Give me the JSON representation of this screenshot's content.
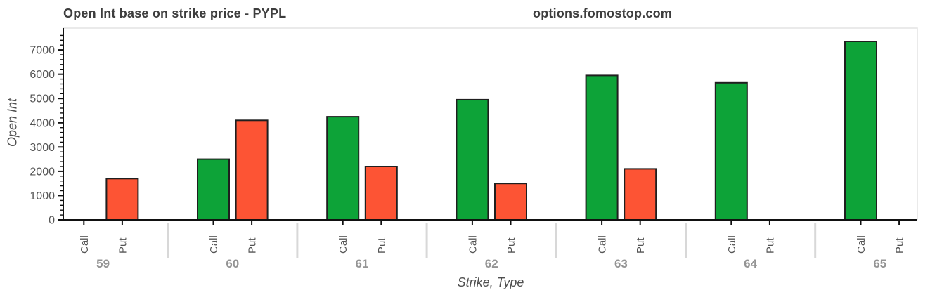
{
  "header": {
    "title": "Open Int base on strike price - PYPL",
    "watermark": "options.fomostop.com"
  },
  "chart_data": {
    "type": "bar",
    "title": "Open Int base on strike price - PYPL",
    "xlabel": "Strike, Type",
    "ylabel": "Open Int",
    "categories": [
      "59",
      "60",
      "61",
      "62",
      "63",
      "64",
      "65"
    ],
    "subcategories": [
      "Call",
      "Put"
    ],
    "series": [
      {
        "name": "Call",
        "color": "#0da338",
        "values": [
          0,
          2500,
          4250,
          4950,
          5950,
          5650,
          7350
        ]
      },
      {
        "name": "Put",
        "color": "#fd5434",
        "values": [
          1700,
          4100,
          2200,
          1500,
          2100,
          0,
          0
        ]
      }
    ],
    "ylim": [
      0,
      7900
    ],
    "yticks": [
      0,
      1000,
      2000,
      3000,
      4000,
      5000,
      6000,
      7000
    ],
    "minor_tick_step": 200,
    "grid": false,
    "legend": false,
    "bar_border_color": "#1f1f1f",
    "axis_color": "#111111",
    "tick_label_color": "#555555",
    "group_label_color": "#949494",
    "divider_color": "#d8d8d8",
    "plot_border_color": "#e3e3e3"
  }
}
